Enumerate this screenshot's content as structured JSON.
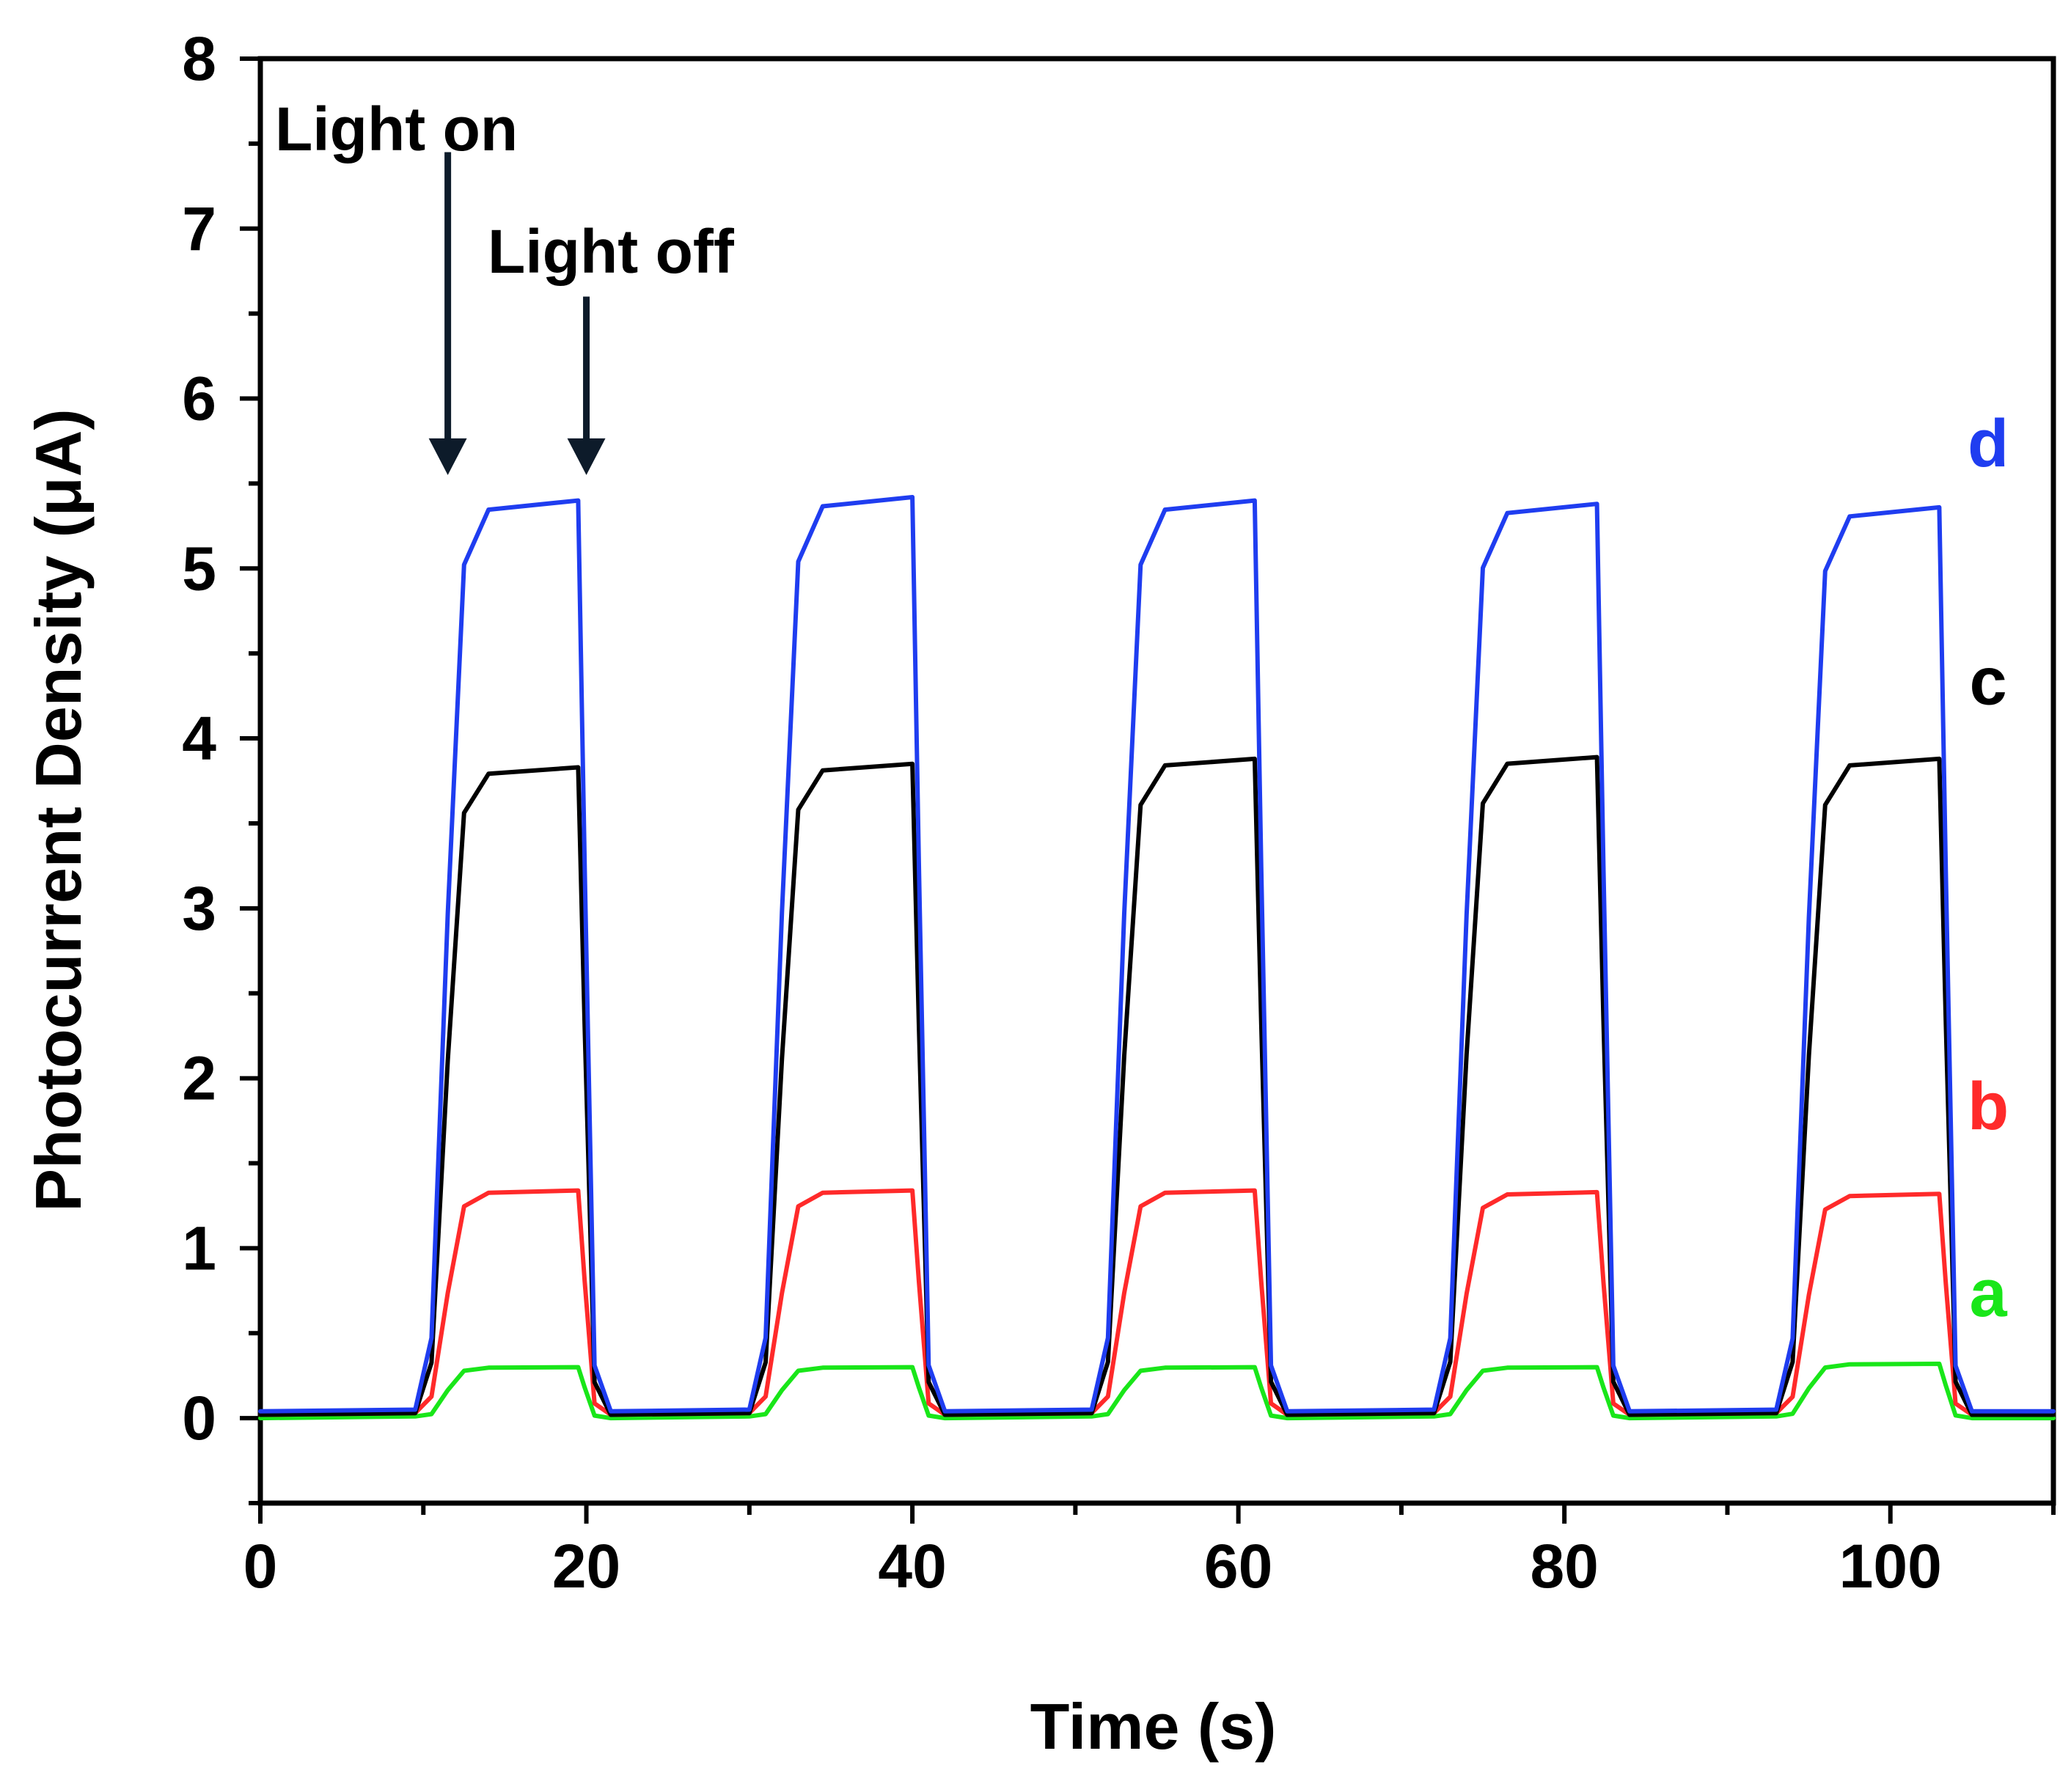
{
  "chart_data": {
    "type": "line",
    "title": "",
    "xlabel": "Time (s)",
    "ylabel": "Photocurrent Density (μA)",
    "xlim": [
      0,
      110
    ],
    "ylim": [
      -0.5,
      8
    ],
    "xticks": [
      0,
      20,
      40,
      60,
      80,
      100
    ],
    "yticks": [
      0,
      1,
      2,
      3,
      4,
      5,
      6,
      7,
      8
    ],
    "annotations": [
      {
        "text": "Light on",
        "arrow_x": 11.5,
        "arrow_y_top": 7.45,
        "arrow_y_bottom": 5.55
      },
      {
        "text": "Light off",
        "arrow_x": 20,
        "arrow_y_top": 6.6,
        "arrow_y_bottom": 5.55
      }
    ],
    "pulses": [
      {
        "on": 11,
        "off": 19.5
      },
      {
        "on": 31.5,
        "off": 40
      },
      {
        "on": 52.5,
        "off": 61
      },
      {
        "on": 73.5,
        "off": 82
      },
      {
        "on": 94.5,
        "off": 103
      }
    ],
    "series": [
      {
        "name": "a",
        "color": "#19e619",
        "plateaus": [
          0.3,
          0.3,
          0.3,
          0.3,
          0.32
        ],
        "baseline": 0.0,
        "label_x": 106,
        "label_y": 0.6
      },
      {
        "name": "b",
        "color": "#ff2a2a",
        "plateaus": [
          1.34,
          1.34,
          1.34,
          1.33,
          1.32
        ],
        "baseline": 0.02,
        "label_x": 106,
        "label_y": 1.7
      },
      {
        "name": "c",
        "color": "#000000",
        "plateaus": [
          3.83,
          3.85,
          3.88,
          3.89,
          3.88
        ],
        "baseline": 0.02,
        "label_x": 106,
        "label_y": 4.2
      },
      {
        "name": "d",
        "color": "#1f3df0",
        "plateaus": [
          5.4,
          5.42,
          5.4,
          5.38,
          5.36
        ],
        "baseline": 0.04,
        "label_x": 106,
        "label_y": 5.6
      }
    ]
  }
}
